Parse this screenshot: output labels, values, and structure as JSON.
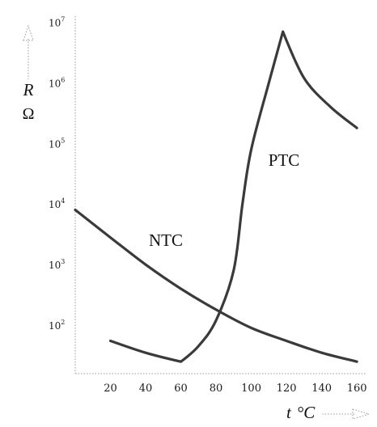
{
  "chart_data": {
    "type": "line",
    "y_scale": "log",
    "xlim": [
      0,
      165
    ],
    "ylim_exp": [
      1.2,
      7.1
    ],
    "x_ticks": [
      "20",
      "40",
      "60",
      "80",
      "100",
      "120",
      "140",
      "160"
    ],
    "y_ticks": [
      {
        "base": "10",
        "exp": "2"
      },
      {
        "base": "10",
        "exp": "3"
      },
      {
        "base": "10",
        "exp": "4"
      },
      {
        "base": "10",
        "exp": "5"
      },
      {
        "base": "10",
        "exp": "6"
      },
      {
        "base": "10",
        "exp": "7"
      }
    ],
    "xlabel": {
      "var": "t",
      "unit": "°C"
    },
    "ylabel": {
      "var": "R",
      "unit": "Ω"
    },
    "grid": false,
    "series": [
      {
        "name": "NTC",
        "x": [
          0,
          20,
          40,
          60,
          80,
          100,
          120,
          140,
          160
        ],
        "y": [
          8000,
          2800,
          1000,
          400,
          180,
          90,
          55,
          35,
          25
        ]
      },
      {
        "name": "PTC",
        "x": [
          20,
          40,
          60,
          70,
          80,
          90,
          95,
          100,
          110,
          118,
          130,
          145,
          160
        ],
        "y": [
          55,
          35,
          25,
          45,
          120,
          800,
          10000,
          80000,
          1000000,
          7000000,
          1200000,
          400000,
          180000
        ]
      }
    ]
  }
}
